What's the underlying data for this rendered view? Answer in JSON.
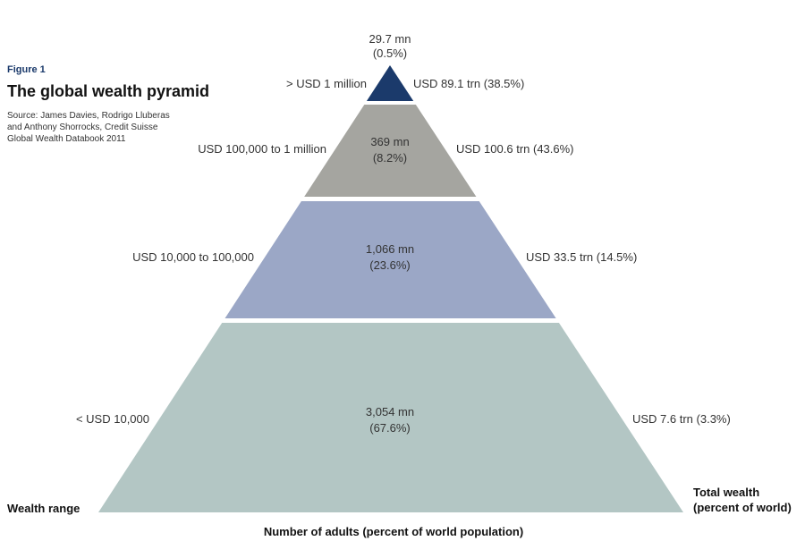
{
  "figure_label": "Figure 1",
  "title": "The global wealth pyramid",
  "source_lines": [
    "Source: James Davies, Rodrigo Lluberas",
    "and Anthony Shorrocks, Credit Suisse",
    "Global Wealth Databook 2011"
  ],
  "colors": {
    "tier_1": "#1b3a6b",
    "tier_2": "#a5a5a0",
    "tier_3": "#9ba7c6",
    "tier_4": "#b3c6c4"
  },
  "chart_data": {
    "type": "pyramid",
    "title": "The global wealth pyramid",
    "left_axis_label": "Wealth range",
    "right_axis_label": [
      "Total wealth",
      "(percent of world)"
    ],
    "bottom_axis_label": "Number of adults (percent of world population)",
    "tiers": [
      {
        "wealth_range": "> USD 1 million",
        "adults": "29.7 mn",
        "adults_pct": "(0.5%)",
        "adults_mn": 29.7,
        "adults_share": 0.5,
        "total_wealth": "USD 89.1 trn (38.5%)",
        "wealth_trn": 89.1,
        "wealth_share": 38.5
      },
      {
        "wealth_range": "USD 100,000 to 1 million",
        "adults": "369 mn",
        "adults_pct": "(8.2%)",
        "adults_mn": 369,
        "adults_share": 8.2,
        "total_wealth": "USD 100.6 trn (43.6%)",
        "wealth_trn": 100.6,
        "wealth_share": 43.6
      },
      {
        "wealth_range": "USD 10,000 to 100,000",
        "adults": "1,066 mn",
        "adults_pct": "(23.6%)",
        "adults_mn": 1066,
        "adults_share": 23.6,
        "total_wealth": "USD 33.5 trn (14.5%)",
        "wealth_trn": 33.5,
        "wealth_share": 14.5
      },
      {
        "wealth_range": "< USD 10,000",
        "adults": "3,054 mn",
        "adults_pct": "(67.6%)",
        "adults_mn": 3054,
        "adults_share": 67.6,
        "total_wealth": "USD 7.6 trn (3.3%)",
        "wealth_trn": 7.6,
        "wealth_share": 3.3
      }
    ]
  }
}
